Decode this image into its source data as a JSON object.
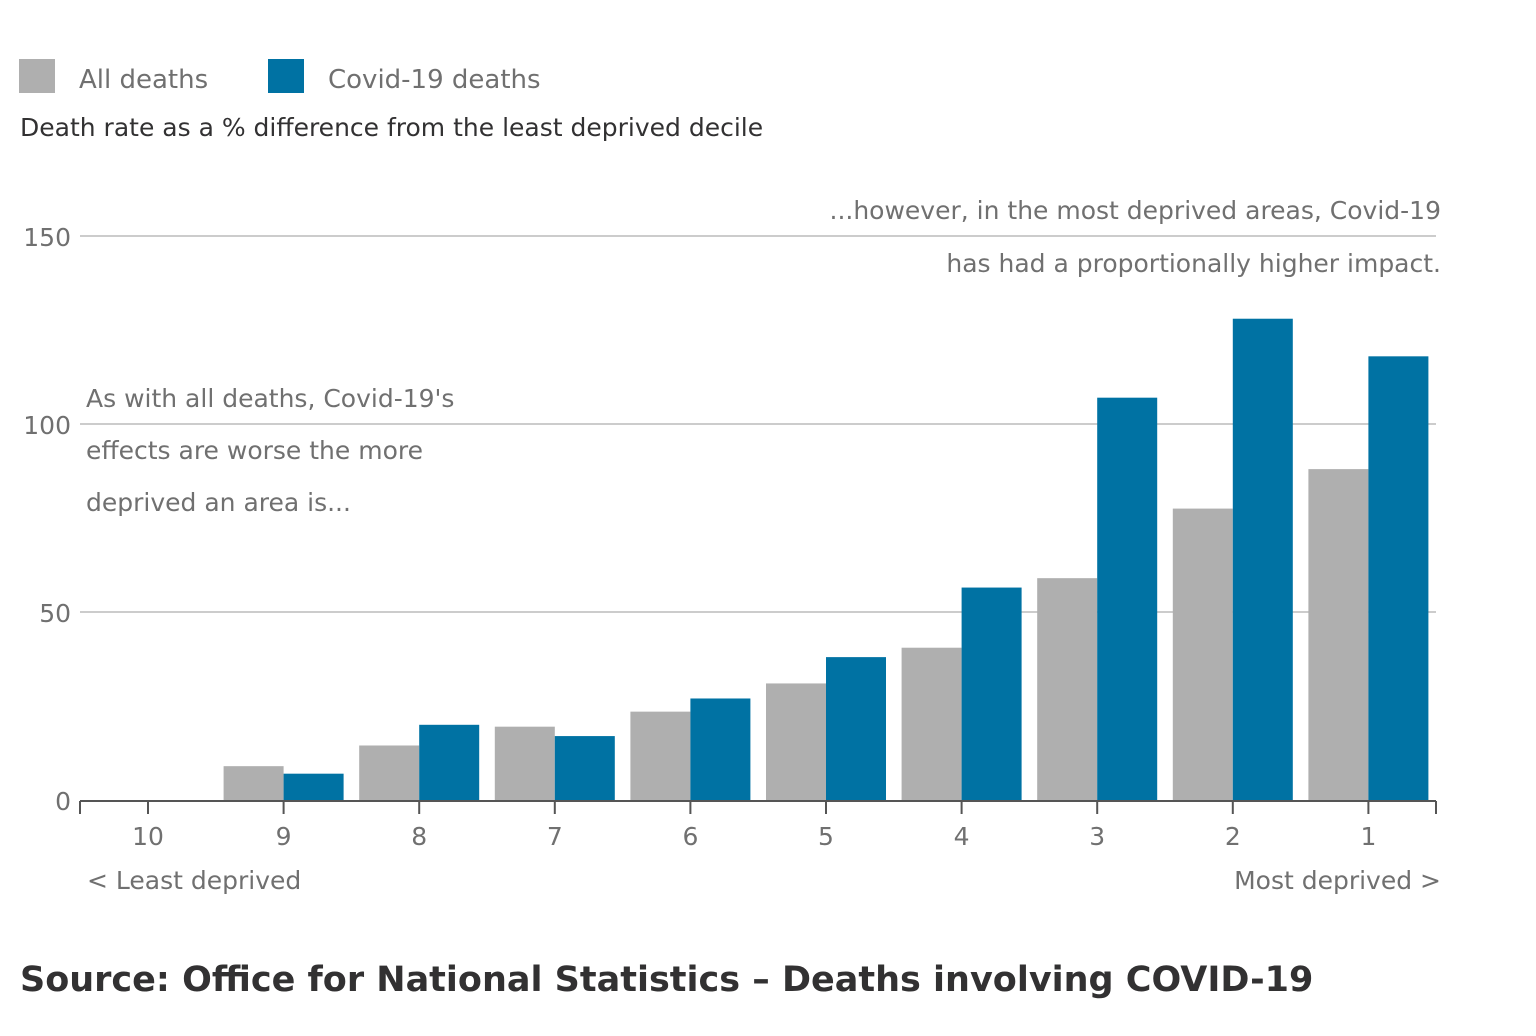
{
  "chart_data": {
    "type": "bar",
    "subtitle": "Death rate as a % difference from the least deprived decile",
    "categories": [
      "10",
      "9",
      "8",
      "7",
      "6",
      "5",
      "4",
      "3",
      "2",
      "1"
    ],
    "series": [
      {
        "name": "All deaths",
        "color": "#afafaf",
        "values": [
          0,
          9,
          14.5,
          19.5,
          23.5,
          31,
          40.5,
          59,
          77.5,
          88
        ]
      },
      {
        "name": "Covid-19 deaths",
        "color": "#0072a3",
        "values": [
          0,
          7,
          20,
          17,
          27,
          38,
          56.5,
          107,
          128,
          118
        ]
      }
    ],
    "ylim": [
      0,
      150
    ],
    "yticks": [
      0,
      50,
      100,
      150
    ],
    "grid": true,
    "legend": "top-left",
    "axis_end_labels": {
      "left": "< Least deprived",
      "right": "Most deprived >"
    },
    "annotations": [
      {
        "lines": [
          "As with all deaths, Covid-19's",
          "effects are worse the more",
          "deprived an area is..."
        ]
      },
      {
        "lines": [
          "...however, in the most deprived areas, Covid-19",
          "has had a proportionally higher impact."
        ]
      }
    ]
  },
  "source": "Source: Office for National Statistics – Deaths involving COVID-19"
}
